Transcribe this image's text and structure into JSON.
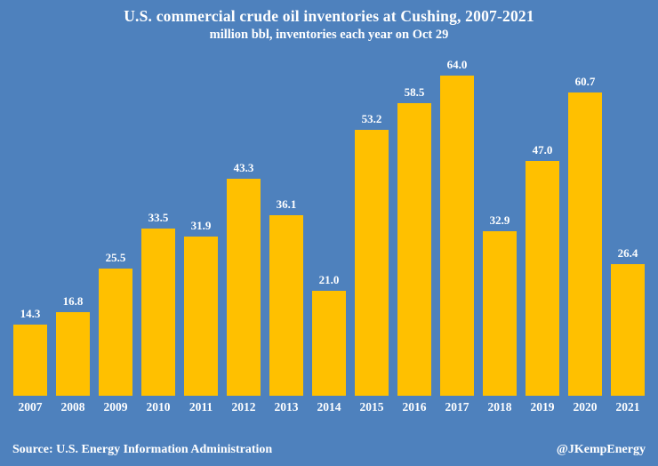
{
  "header": {
    "title": "U.S. commercial crude oil inventories at Cushing, 2007-2021",
    "subtitle": "million bbl, inventories each year on Oct 29"
  },
  "footer": {
    "source": "Source: U.S. Energy Information Administration",
    "credit": "@JKempEnergy"
  },
  "colors": {
    "background": "#4E81BD",
    "bar": "#FFC000",
    "text": "#FFFFFF"
  },
  "chart_data": {
    "type": "bar",
    "title": "U.S. commercial crude oil inventories at Cushing, 2007-2021",
    "subtitle": "million bbl, inventories each year on Oct 29",
    "categories": [
      "2007",
      "2008",
      "2009",
      "2010",
      "2011",
      "2012",
      "2013",
      "2014",
      "2015",
      "2016",
      "2017",
      "2018",
      "2019",
      "2020",
      "2021"
    ],
    "values": [
      14.3,
      16.8,
      25.5,
      33.5,
      31.9,
      43.3,
      36.1,
      21.0,
      53.2,
      58.5,
      64.0,
      32.9,
      47.0,
      60.7,
      26.4
    ],
    "value_labels": [
      "14.3",
      "16.8",
      "25.5",
      "33.5",
      "31.9",
      "43.3",
      "36.1",
      "21.0",
      "53.2",
      "58.5",
      "64.0",
      "32.9",
      "47.0",
      "60.7",
      "26.4"
    ],
    "xlabel": "",
    "ylabel": "",
    "ylim": [
      0,
      70
    ],
    "grid": false,
    "legend": false,
    "bar_color": "#FFC000",
    "data_labels": "above-bar",
    "source": "Source: U.S. Energy Information Administration",
    "credit": "@JKempEnergy"
  }
}
